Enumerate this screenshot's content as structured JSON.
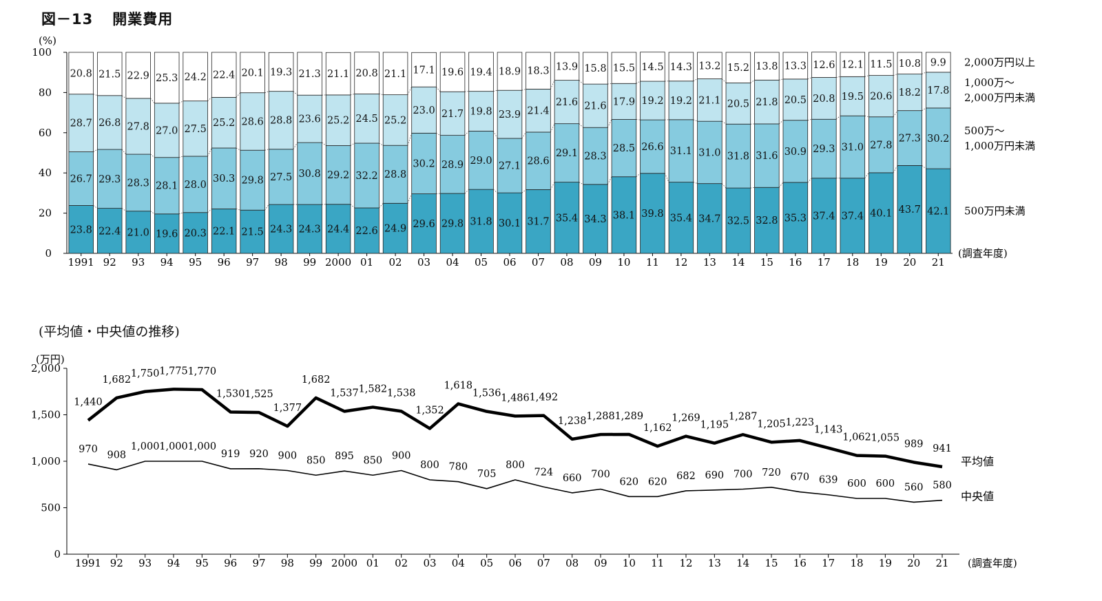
{
  "figure": {
    "label": "図－13",
    "title": "開業費用",
    "subtitle": "(平均値・中央値の推移)"
  },
  "chart_data": [
    {
      "type": "bar",
      "stacked": true,
      "percent": true,
      "yunit": "(%)",
      "xunit": "(調査年度)",
      "ylim": [
        0,
        100
      ],
      "yticks": [
        0,
        20,
        40,
        60,
        80,
        100
      ],
      "categories": [
        "1991",
        "92",
        "93",
        "94",
        "95",
        "96",
        "97",
        "98",
        "99",
        "2000",
        "01",
        "02",
        "03",
        "04",
        "05",
        "06",
        "07",
        "08",
        "09",
        "10",
        "11",
        "12",
        "13",
        "14",
        "15",
        "16",
        "17",
        "18",
        "19",
        "20",
        "21"
      ],
      "series": [
        {
          "name": "500万円未満",
          "color": "#3aa6c4",
          "values": [
            23.8,
            22.4,
            21.0,
            19.6,
            20.3,
            22.1,
            21.5,
            24.3,
            24.3,
            24.4,
            22.6,
            24.9,
            29.6,
            29.8,
            31.8,
            30.1,
            31.7,
            35.4,
            34.3,
            38.1,
            39.8,
            35.4,
            34.7,
            32.5,
            32.8,
            35.3,
            37.4,
            37.4,
            40.1,
            43.7,
            42.1
          ]
        },
        {
          "name": "500万～\n1,000万円未満",
          "color": "#86cbdf",
          "values": [
            26.7,
            29.3,
            28.3,
            28.1,
            28.0,
            30.3,
            29.8,
            27.5,
            30.8,
            29.2,
            32.2,
            28.8,
            30.2,
            28.9,
            29.0,
            27.1,
            28.6,
            29.1,
            28.3,
            28.5,
            26.6,
            31.1,
            31.0,
            31.8,
            31.6,
            30.9,
            29.3,
            31.0,
            27.8,
            27.3,
            30.2
          ]
        },
        {
          "name": "1,000万～\n2,000万円未満",
          "color": "#bfe4ef",
          "values": [
            28.7,
            26.8,
            27.8,
            27.0,
            27.5,
            25.2,
            28.6,
            28.8,
            23.6,
            25.2,
            24.5,
            25.2,
            23.0,
            21.7,
            19.8,
            23.9,
            21.4,
            21.6,
            21.6,
            17.9,
            19.2,
            19.2,
            21.1,
            20.5,
            21.8,
            20.5,
            20.8,
            19.5,
            20.6,
            18.2,
            17.8
          ]
        },
        {
          "name": "2,000万円以上",
          "color": "#ffffff",
          "values": [
            20.8,
            21.5,
            22.9,
            25.3,
            24.2,
            22.4,
            20.1,
            19.3,
            21.3,
            21.1,
            20.8,
            21.1,
            17.1,
            19.6,
            19.4,
            18.9,
            18.3,
            13.9,
            15.8,
            15.5,
            14.5,
            14.3,
            13.2,
            15.2,
            13.8,
            13.3,
            12.6,
            12.1,
            11.5,
            10.8,
            9.9
          ]
        }
      ]
    },
    {
      "type": "line",
      "yunit": "(万円)",
      "xunit": "(調査年度)",
      "ylim": [
        0,
        2000
      ],
      "yticks": [
        0,
        500,
        1000,
        1500,
        2000
      ],
      "ytick_labels": [
        "0",
        "500",
        "1,000",
        "1,500",
        "2,000"
      ],
      "categories": [
        "1991",
        "92",
        "93",
        "94",
        "95",
        "96",
        "97",
        "98",
        "99",
        "2000",
        "01",
        "02",
        "03",
        "04",
        "05",
        "06",
        "07",
        "08",
        "09",
        "10",
        "11",
        "12",
        "13",
        "14",
        "15",
        "16",
        "17",
        "18",
        "19",
        "20",
        "21"
      ],
      "series": [
        {
          "name": "平均値",
          "bold": true,
          "values": [
            1440,
            1682,
            1750,
            1775,
            1770,
            1530,
            1525,
            1377,
            1682,
            1537,
            1582,
            1538,
            1352,
            1618,
            1536,
            1486,
            1492,
            1238,
            1288,
            1289,
            1162,
            1269,
            1195,
            1287,
            1205,
            1223,
            1143,
            1062,
            1055,
            989,
            941
          ],
          "labels": [
            "1,440",
            "1,682",
            "1,750",
            "1,775",
            "1,770",
            "1,530",
            "1,525",
            "1,377",
            "1,682",
            "1,537",
            "1,582",
            "1,538",
            "1,352",
            "1,618",
            "1,536",
            "1,486",
            "1,492",
            "1,238",
            "1,288",
            "1,289",
            "1,162",
            "1,269",
            "1,195",
            "1,287",
            "1,205",
            "1,223",
            "1,143",
            "1,062",
            "1,055",
            "989",
            "941"
          ]
        },
        {
          "name": "中央値",
          "bold": false,
          "values": [
            970,
            908,
            1000,
            1000,
            1000,
            919,
            920,
            900,
            850,
            895,
            850,
            900,
            800,
            780,
            705,
            800,
            724,
            660,
            700,
            620,
            620,
            682,
            690,
            700,
            720,
            670,
            639,
            600,
            600,
            560,
            580
          ],
          "labels": [
            "970",
            "908",
            "1,000",
            "1,000",
            "1,000",
            "919",
            "920",
            "900",
            "850",
            "895",
            "850",
            "900",
            "800",
            "780",
            "705",
            "800",
            "724",
            "660",
            "700",
            "620",
            "620",
            "682",
            "690",
            "700",
            "720",
            "670",
            "639",
            "600",
            "600",
            "560",
            "580"
          ]
        }
      ]
    }
  ]
}
